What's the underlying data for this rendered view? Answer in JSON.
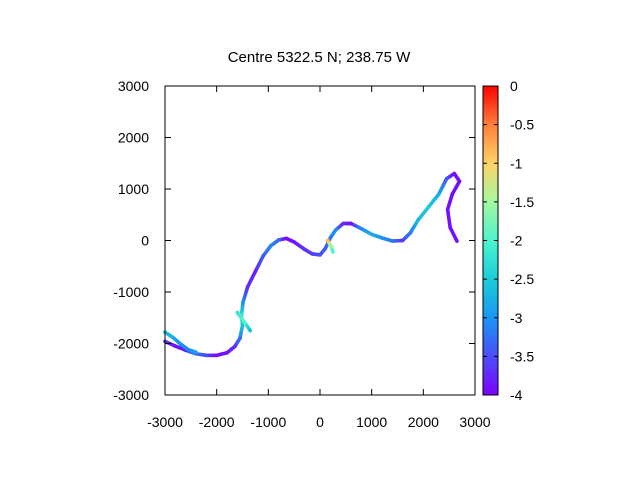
{
  "chart_data": {
    "type": "scatter",
    "title": "Centre 5322.5 N; 238.75  W",
    "xlabel": "",
    "ylabel": "",
    "xlim": [
      -3000,
      3000
    ],
    "ylim": [
      -3000,
      3000
    ],
    "x_ticks": [
      "-3000",
      "-2000",
      "-1000",
      "0",
      "1000",
      "2000",
      "3000"
    ],
    "y_ticks": [
      "-3000",
      "-2000",
      "-1000",
      "0",
      "1000",
      "2000",
      "3000"
    ],
    "grid": false,
    "colorbar": {
      "min": -4,
      "max": 0,
      "palette": "rainbow",
      "ticks": [
        "0",
        "-0.5",
        "-1",
        "-1.5",
        "-2",
        "-2.5",
        "-3",
        "-3.5",
        "-4"
      ]
    },
    "series": [
      {
        "points": [
          [
            -3000,
            -1960,
            -3.6
          ],
          [
            -2800,
            -2050,
            -3.9
          ],
          [
            -2600,
            -2130,
            -3.8
          ],
          [
            -2400,
            -2200,
            -3.2
          ],
          [
            -2200,
            -2230,
            -3.5
          ],
          [
            -2000,
            -2230,
            -3.9
          ],
          [
            -1800,
            -2180,
            -3.9
          ],
          [
            -1650,
            -2060,
            -3.7
          ],
          [
            -1550,
            -1900,
            -3.3
          ],
          [
            -1500,
            -1650,
            -2.6
          ],
          [
            -1520,
            -1450,
            -2.2
          ],
          [
            -1490,
            -1200,
            -3.0
          ],
          [
            -1400,
            -900,
            -3.7
          ],
          [
            -1250,
            -600,
            -3.8
          ],
          [
            -1100,
            -300,
            -3.4
          ],
          [
            -950,
            -100,
            -3.1
          ],
          [
            -800,
            10,
            -3.3
          ],
          [
            -650,
            40,
            -3.9
          ],
          [
            -500,
            -30,
            -3.9
          ],
          [
            -300,
            -170,
            -3.7
          ],
          [
            -150,
            -260,
            -3.6
          ],
          [
            0,
            -280,
            -3.5
          ],
          [
            100,
            -160,
            -3.4
          ],
          [
            200,
            50,
            -3.2
          ],
          [
            300,
            200,
            -3.0
          ],
          [
            450,
            330,
            -3.7
          ],
          [
            600,
            330,
            -3.9
          ],
          [
            800,
            230,
            -3.1
          ],
          [
            1000,
            120,
            -2.8
          ],
          [
            1200,
            50,
            -3.0
          ],
          [
            1400,
            -10,
            -3.2
          ],
          [
            1600,
            0,
            -3.6
          ],
          [
            1750,
            150,
            -3.2
          ],
          [
            1900,
            400,
            -2.7
          ],
          [
            2100,
            650,
            -2.5
          ],
          [
            2300,
            900,
            -2.8
          ],
          [
            2450,
            1200,
            -3.4
          ],
          [
            2600,
            1300,
            -3.9
          ],
          [
            2700,
            1150,
            -3.9
          ],
          [
            2560,
            900,
            -3.9
          ],
          [
            2470,
            600,
            -3.9
          ],
          [
            2520,
            250,
            -3.9
          ],
          [
            2650,
            -10,
            -3.9
          ]
        ]
      },
      {
        "points": [
          [
            -3000,
            -1780,
            -2.6
          ],
          [
            -2850,
            -1880,
            -2.8
          ],
          [
            -2700,
            -2010,
            -3.0
          ],
          [
            -2550,
            -2120,
            -3.1
          ],
          [
            -2400,
            -2170,
            -2.9
          ]
        ]
      },
      {
        "points": [
          [
            -1600,
            -1400,
            -2.2
          ],
          [
            -1450,
            -1600,
            -1.9
          ],
          [
            -1350,
            -1750,
            -2.6
          ]
        ]
      },
      {
        "points": [
          [
            150,
            0,
            -0.8
          ],
          [
            220,
            -120,
            -1.6
          ],
          [
            250,
            -220,
            -2.0
          ]
        ]
      }
    ]
  }
}
